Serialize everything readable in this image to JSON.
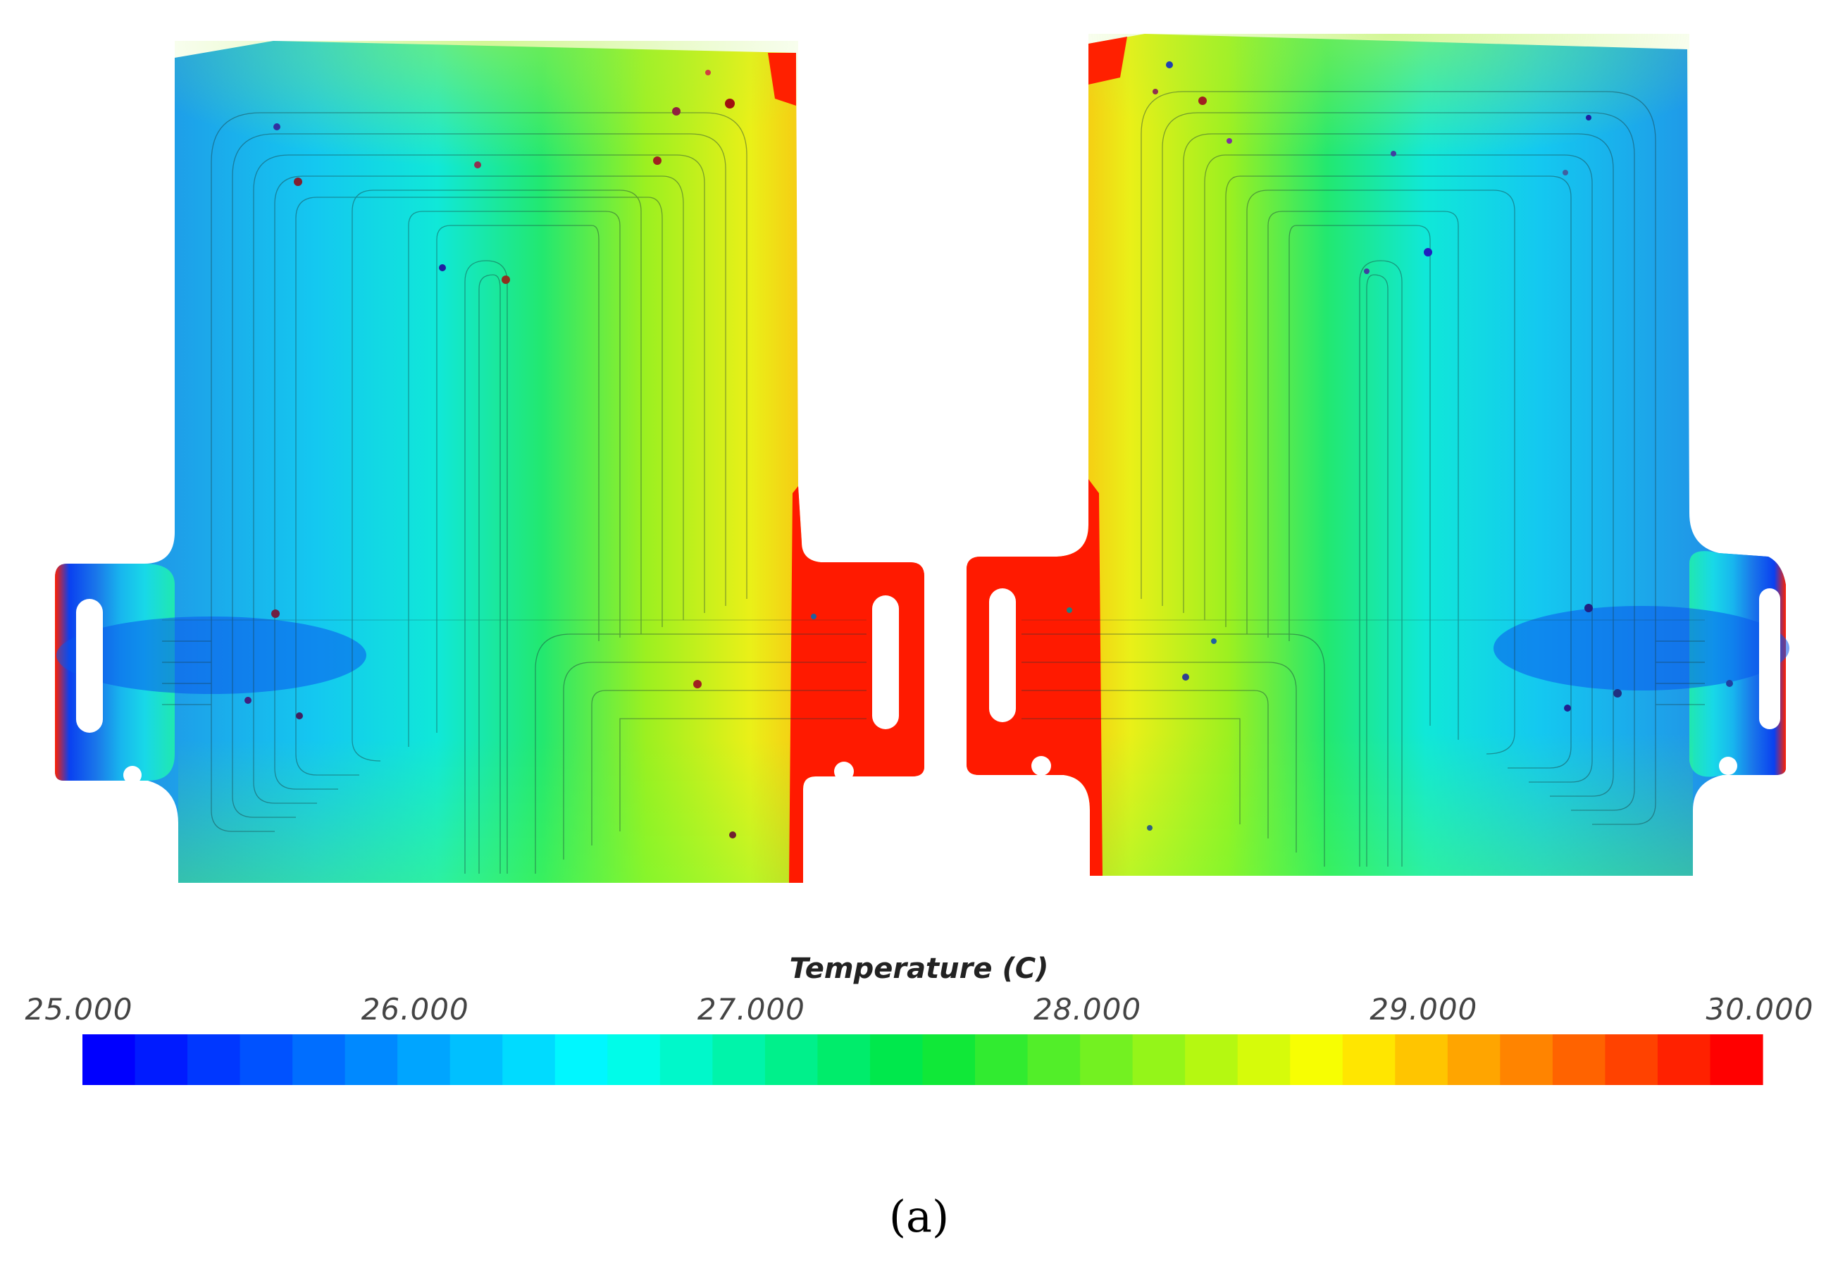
{
  "colorbar": {
    "title": "Temperature (C)",
    "min": 25.0,
    "max": 30.0,
    "tick_labels": [
      "25.000",
      "26.000",
      "27.000",
      "28.000",
      "29.000",
      "30.000"
    ],
    "steps": 32,
    "colormap": "blue-cyan-green-yellow-red"
  },
  "caption": "(a)",
  "panels": [
    {
      "name": "left-cooling-plate",
      "cold_inlet": "left",
      "hot_side": "right"
    },
    {
      "name": "right-cooling-plate",
      "cold_inlet": "right",
      "hot_side": "left"
    }
  ],
  "colors": {
    "cold": "#0000ff",
    "cyan": "#00ffff",
    "green": "#00ff00",
    "yellow": "#ffff00",
    "hot": "#ff0000"
  }
}
